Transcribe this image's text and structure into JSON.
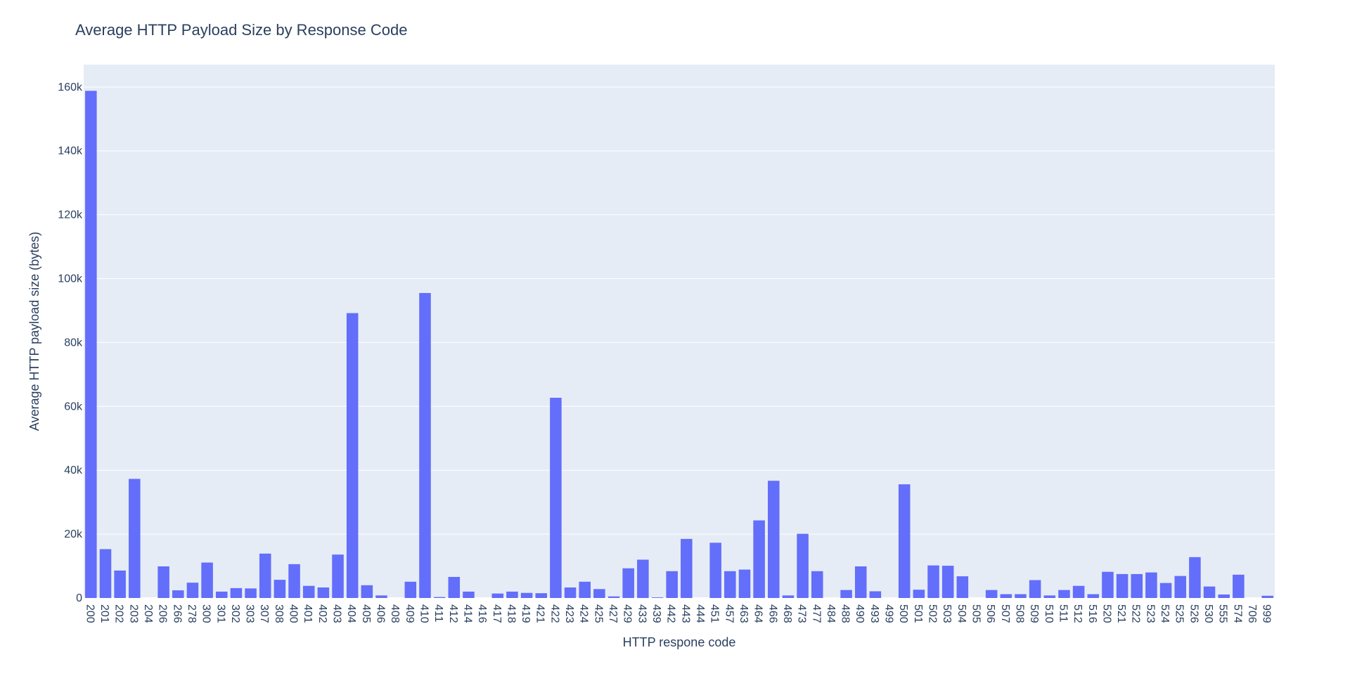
{
  "chart_data": {
    "type": "bar",
    "title": "Average HTTP Payload Size by Response Code",
    "xlabel": "HTTP respone code",
    "ylabel": "Average HTTP payload size (bytes)",
    "ylim": [
      0,
      167000
    ],
    "yticks": [
      0,
      20000,
      40000,
      60000,
      80000,
      100000,
      120000,
      140000,
      160000
    ],
    "ytick_labels": [
      "0",
      "20k",
      "40k",
      "60k",
      "80k",
      "100k",
      "120k",
      "140k",
      "160k"
    ],
    "grid": true,
    "bar_color": "#636efa",
    "plot_bg": "#e5ecf6",
    "categories": [
      "200",
      "201",
      "202",
      "203",
      "204",
      "206",
      "266",
      "278",
      "300",
      "301",
      "302",
      "303",
      "307",
      "308",
      "400",
      "401",
      "402",
      "403",
      "404",
      "405",
      "406",
      "408",
      "409",
      "410",
      "411",
      "412",
      "414",
      "416",
      "417",
      "418",
      "419",
      "421",
      "422",
      "423",
      "424",
      "425",
      "427",
      "429",
      "433",
      "439",
      "442",
      "443",
      "444",
      "451",
      "457",
      "463",
      "464",
      "466",
      "468",
      "473",
      "477",
      "484",
      "488",
      "490",
      "493",
      "499",
      "500",
      "501",
      "502",
      "503",
      "504",
      "505",
      "506",
      "507",
      "508",
      "509",
      "510",
      "511",
      "512",
      "516",
      "520",
      "521",
      "522",
      "523",
      "524",
      "525",
      "526",
      "530",
      "555",
      "574",
      "706",
      "999"
    ],
    "values": [
      158800,
      15300,
      8600,
      37300,
      0,
      9900,
      2400,
      4800,
      11100,
      2000,
      3100,
      3000,
      13900,
      5700,
      10600,
      3800,
      3300,
      13600,
      89200,
      4000,
      800,
      0,
      5100,
      95500,
      300,
      6600,
      2000,
      0,
      1400,
      2000,
      1600,
      1500,
      62700,
      3300,
      5100,
      2800,
      500,
      9300,
      12000,
      200,
      8400,
      18500,
      0,
      17300,
      8400,
      8900,
      24300,
      36700,
      800,
      20100,
      8400,
      0,
      2500,
      9900,
      2100,
      0,
      35600,
      2600,
      10200,
      10100,
      6800,
      0,
      2500,
      1200,
      1200,
      5600,
      800,
      2500,
      3800,
      1200,
      8200,
      7500,
      7500,
      8000,
      4700,
      6900,
      12800,
      3600,
      1100,
      7300,
      0,
      700
    ]
  }
}
